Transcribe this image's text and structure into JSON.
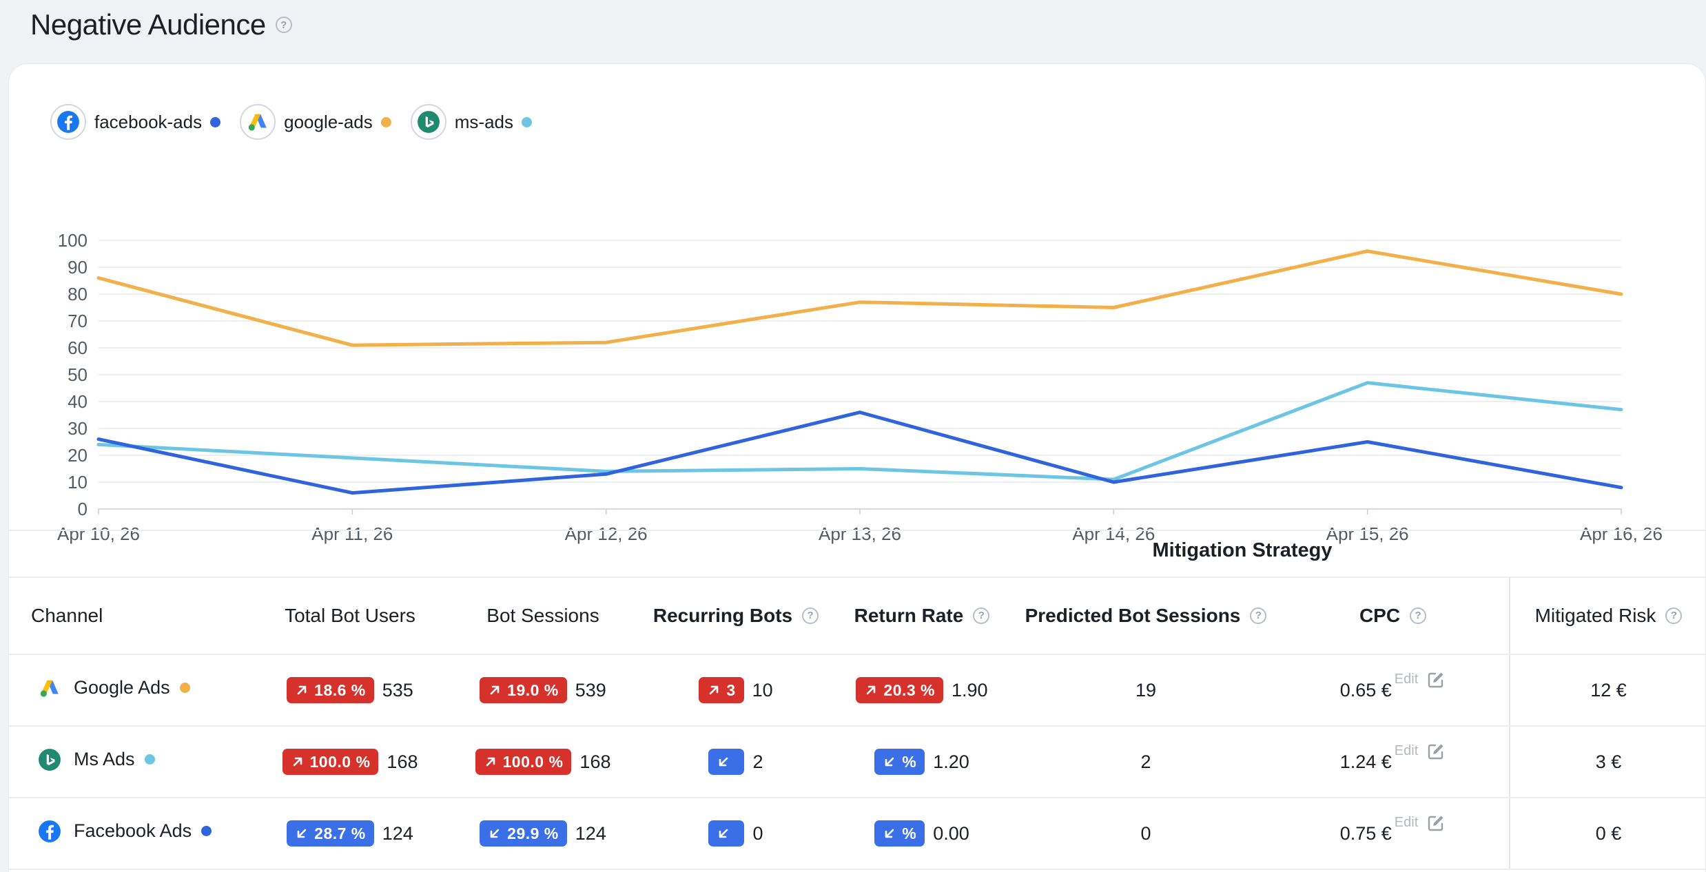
{
  "header": {
    "title": "Negative Audience"
  },
  "legend": [
    {
      "label": "facebook-ads",
      "color": "#2f64dc",
      "icon": "facebook-logo-icon"
    },
    {
      "label": "google-ads",
      "color": "#f2b04a",
      "icon": "google-ads-logo-icon"
    },
    {
      "label": "ms-ads",
      "color": "#6cc6e3",
      "icon": "ms-ads-logo-icon"
    }
  ],
  "chart_data": {
    "type": "line",
    "x": [
      "Apr 10, 26",
      "Apr 11, 26",
      "Apr 12, 26",
      "Apr 13, 26",
      "Apr 14, 26",
      "Apr 15, 26",
      "Apr 16, 26"
    ],
    "y_ticks": [
      "0",
      "10",
      "20",
      "30",
      "40",
      "50",
      "60",
      "70",
      "80",
      "90",
      "100"
    ],
    "ylim": [
      0,
      100
    ],
    "grid": true,
    "legend_position": "top-left",
    "series": [
      {
        "name": "facebook-ads",
        "color": "#2f64dc",
        "values": [
          26,
          6,
          13,
          36,
          10,
          25,
          8
        ]
      },
      {
        "name": "google-ads",
        "color": "#f2b04a",
        "values": [
          86,
          61,
          62,
          77,
          75,
          96,
          80
        ]
      },
      {
        "name": "ms-ads",
        "color": "#6cc6e3",
        "values": [
          24,
          19,
          14,
          15,
          11,
          47,
          37
        ]
      }
    ]
  },
  "table": {
    "group_header": "Mitigation Strategy",
    "columns": {
      "channel": "Channel",
      "total_bot_users": "Total Bot Users",
      "bot_sessions": "Bot Sessions",
      "recurring_bots": "Recurring Bots",
      "return_rate": "Return Rate",
      "predicted_bot_sessions": "Predicted Bot Sessions",
      "cpc": "CPC",
      "mitigated_risk": "Mitigated Risk"
    },
    "edit_label": "Edit",
    "rows": [
      {
        "channel": "Google Ads",
        "dot_color": "#f2b04a",
        "total_bot_users": {
          "badge": "18.6 %",
          "dir": "up",
          "value": "535"
        },
        "bot_sessions": {
          "badge": "19.0 %",
          "dir": "up",
          "value": "539"
        },
        "recurring_bots": {
          "badge": "3",
          "dir": "up",
          "value": "10"
        },
        "return_rate": {
          "badge": "20.3 %",
          "dir": "up",
          "value": "1.90"
        },
        "predicted_bot_sessions": "19",
        "cpc": "0.65 €",
        "mitigated_risk": "12 €"
      },
      {
        "channel": "Ms Ads",
        "dot_color": "#6cc6e3",
        "total_bot_users": {
          "badge": "100.0 %",
          "dir": "up",
          "value": "168"
        },
        "bot_sessions": {
          "badge": "100.0 %",
          "dir": "up",
          "value": "168"
        },
        "recurring_bots": {
          "badge": "",
          "dir": "down",
          "value": "2"
        },
        "return_rate": {
          "badge": "%",
          "dir": "down",
          "value": "1.20"
        },
        "predicted_bot_sessions": "2",
        "cpc": "1.24 €",
        "mitigated_risk": "3 €"
      },
      {
        "channel": "Facebook Ads",
        "dot_color": "#2f64dc",
        "total_bot_users": {
          "badge": "28.7 %",
          "dir": "down",
          "value": "124"
        },
        "bot_sessions": {
          "badge": "29.9 %",
          "dir": "down",
          "value": "124"
        },
        "recurring_bots": {
          "badge": "",
          "dir": "down",
          "value": "0"
        },
        "return_rate": {
          "badge": "%",
          "dir": "down",
          "value": "0.00"
        },
        "predicted_bot_sessions": "0",
        "cpc": "0.75 €",
        "mitigated_risk": "0 €"
      }
    ]
  }
}
